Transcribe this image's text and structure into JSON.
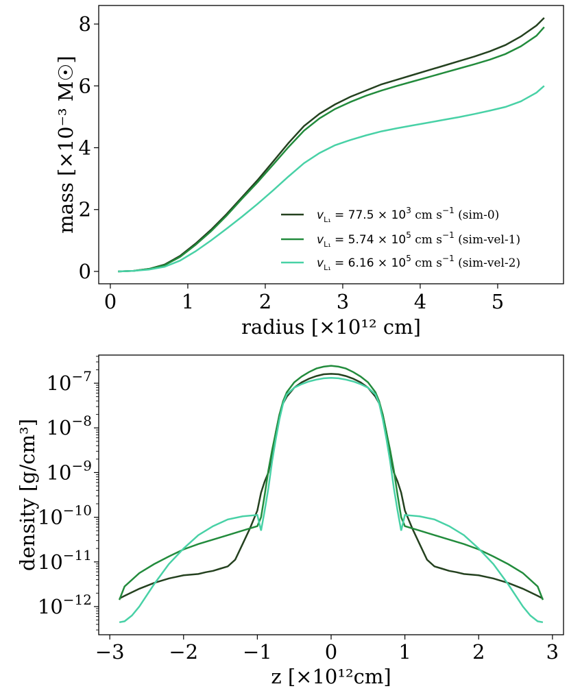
{
  "chart_data": [
    {
      "type": "line",
      "xlabel": "radius [×10¹² cm]",
      "ylabel": "mass [×10⁻³ M☉]",
      "xlim": [
        -0.15,
        5.85
      ],
      "ylim": [
        -0.4,
        8.6
      ],
      "xticks": [
        0,
        1,
        2,
        3,
        4,
        5
      ],
      "yticks": [
        0,
        2,
        4,
        6,
        8
      ],
      "xtick_labels": [
        "0",
        "1",
        "2",
        "3",
        "4",
        "5"
      ],
      "ytick_labels": [
        "0",
        "2",
        "4",
        "6",
        "8"
      ],
      "legend": "lower-right",
      "series": [
        {
          "name": "v_L1 = 77.5 × 10^3 cm s^-1 (sim-0)",
          "legend_value": "77.5",
          "legend_exp": "3",
          "legend_tag": "(sim-0)",
          "color": "#24411f",
          "x": [
            0.1,
            0.3,
            0.5,
            0.7,
            0.9,
            1.1,
            1.3,
            1.5,
            1.7,
            1.9,
            2.1,
            2.3,
            2.5,
            2.7,
            2.9,
            3.1,
            3.3,
            3.5,
            3.7,
            3.9,
            4.1,
            4.3,
            4.5,
            4.7,
            4.9,
            5.1,
            5.3,
            5.5,
            5.6
          ],
          "y": [
            0,
            0.02,
            0.08,
            0.22,
            0.5,
            0.9,
            1.35,
            1.85,
            2.4,
            2.95,
            3.55,
            4.15,
            4.7,
            5.1,
            5.4,
            5.65,
            5.85,
            6.05,
            6.2,
            6.35,
            6.5,
            6.65,
            6.8,
            6.95,
            7.12,
            7.32,
            7.6,
            7.95,
            8.2
          ]
        },
        {
          "name": "v_L1 = 5.74 × 10^5 cm s^-1 (sim-vel-1)",
          "legend_value": "5.74",
          "legend_exp": "5",
          "legend_tag": "(sim-vel-1)",
          "color": "#228b3c",
          "x": [
            0.1,
            0.3,
            0.5,
            0.7,
            0.9,
            1.1,
            1.3,
            1.5,
            1.7,
            1.9,
            2.1,
            2.3,
            2.5,
            2.7,
            2.9,
            3.1,
            3.3,
            3.5,
            3.7,
            3.9,
            4.1,
            4.3,
            4.5,
            4.7,
            4.9,
            5.1,
            5.3,
            5.5,
            5.6
          ],
          "y": [
            0,
            0.02,
            0.08,
            0.2,
            0.47,
            0.86,
            1.3,
            1.8,
            2.35,
            2.88,
            3.45,
            4.02,
            4.55,
            4.95,
            5.25,
            5.48,
            5.68,
            5.85,
            6.0,
            6.14,
            6.28,
            6.42,
            6.56,
            6.7,
            6.85,
            7.03,
            7.28,
            7.62,
            7.9
          ]
        },
        {
          "name": "v_L1 = 6.16 × 10^5 cm s^-1 (sim-vel-2)",
          "legend_value": "6.16",
          "legend_exp": "5",
          "legend_tag": "(sim-vel-2)",
          "color": "#48d1a6",
          "x": [
            0.1,
            0.3,
            0.5,
            0.7,
            0.9,
            1.1,
            1.3,
            1.5,
            1.7,
            1.9,
            2.1,
            2.3,
            2.5,
            2.7,
            2.9,
            3.1,
            3.3,
            3.5,
            3.7,
            3.9,
            4.1,
            4.3,
            4.5,
            4.7,
            4.9,
            5.1,
            5.3,
            5.5,
            5.6
          ],
          "y": [
            0,
            0.02,
            0.06,
            0.15,
            0.35,
            0.65,
            1.0,
            1.38,
            1.77,
            2.18,
            2.62,
            3.07,
            3.5,
            3.83,
            4.08,
            4.25,
            4.4,
            4.53,
            4.63,
            4.72,
            4.81,
            4.9,
            4.99,
            5.09,
            5.2,
            5.32,
            5.5,
            5.78,
            6.0
          ]
        }
      ]
    },
    {
      "type": "line",
      "xlabel": "z [×10¹²cm]",
      "ylabel": "density [g/cm³]",
      "yscale": "log",
      "xlim": [
        -3.15,
        3.15
      ],
      "ylim": [
        -12.63,
        -6.37
      ],
      "xticks": [
        -3,
        -2,
        -1,
        0,
        1,
        2,
        3
      ],
      "xtick_labels": [
        "−3",
        "−2",
        "−1",
        "0",
        "1",
        "2",
        "3"
      ],
      "yticks_log10": [
        -12,
        -11,
        -10,
        -9,
        -8,
        -7
      ],
      "ytick_exponents": [
        "−12",
        "−11",
        "−10",
        "−9",
        "−8",
        "−7"
      ],
      "series": [
        {
          "name": "sim-0",
          "color": "#24411f",
          "x": [
            0,
            0.1,
            0.2,
            0.3,
            0.4,
            0.5,
            0.6,
            0.65,
            0.7,
            0.75,
            0.8,
            0.85,
            0.9,
            0.95,
            1.0,
            1.05,
            1.1,
            1.2,
            1.3,
            1.4,
            1.5,
            1.6,
            1.7,
            1.8,
            2.0,
            2.2,
            2.4,
            2.6,
            2.8,
            2.87
          ],
          "y": [
            -6.79,
            -6.8,
            -6.84,
            -6.9,
            -6.98,
            -7.1,
            -7.3,
            -7.45,
            -7.7,
            -8.1,
            -8.6,
            -9.0,
            -9.2,
            -9.45,
            -9.85,
            -10.05,
            -10.25,
            -10.6,
            -10.95,
            -11.1,
            -11.15,
            -11.2,
            -11.23,
            -11.27,
            -11.3,
            -11.37,
            -11.47,
            -11.6,
            -11.76,
            -11.82
          ]
        },
        {
          "name": "sim-vel-1",
          "color": "#228b3c",
          "x": [
            0,
            0.1,
            0.2,
            0.3,
            0.4,
            0.5,
            0.6,
            0.65,
            0.7,
            0.75,
            0.8,
            0.85,
            0.9,
            0.95,
            1.0,
            1.2,
            1.4,
            1.6,
            1.8,
            2.0,
            2.2,
            2.4,
            2.6,
            2.8,
            2.87
          ],
          "y": [
            -6.61,
            -6.63,
            -6.67,
            -6.75,
            -6.85,
            -6.98,
            -7.2,
            -7.4,
            -7.7,
            -8.1,
            -8.5,
            -8.95,
            -9.5,
            -10.0,
            -10.2,
            -10.3,
            -10.4,
            -10.5,
            -10.6,
            -10.72,
            -10.88,
            -11.05,
            -11.25,
            -11.55,
            -11.85
          ]
        },
        {
          "name": "sim-vel-2",
          "color": "#48d1a6",
          "x": [
            0,
            0.1,
            0.2,
            0.3,
            0.4,
            0.5,
            0.6,
            0.65,
            0.7,
            0.75,
            0.8,
            0.85,
            0.9,
            0.95,
            1.0,
            1.2,
            1.4,
            1.6,
            1.8,
            2.0,
            2.2,
            2.4,
            2.5,
            2.6,
            2.7,
            2.8,
            2.87
          ],
          "y": [
            -6.88,
            -6.89,
            -6.92,
            -6.96,
            -7.02,
            -7.1,
            -7.25,
            -7.45,
            -7.8,
            -8.25,
            -8.75,
            -9.35,
            -9.85,
            -10.3,
            -9.95,
            -9.98,
            -10.05,
            -10.2,
            -10.4,
            -10.7,
            -11.05,
            -11.5,
            -11.75,
            -12.0,
            -12.2,
            -12.33,
            -12.35
          ]
        }
      ]
    }
  ]
}
